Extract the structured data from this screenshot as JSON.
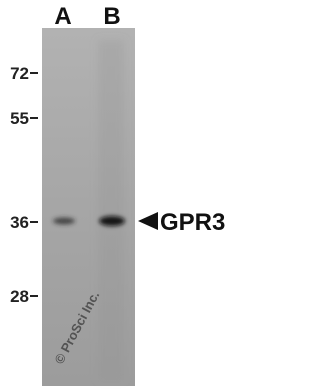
{
  "lanes": [
    "A",
    "B"
  ],
  "markers": [
    "72",
    "55",
    "36",
    "28"
  ],
  "target": "GPR3",
  "watermark": "© ProSci Inc."
}
